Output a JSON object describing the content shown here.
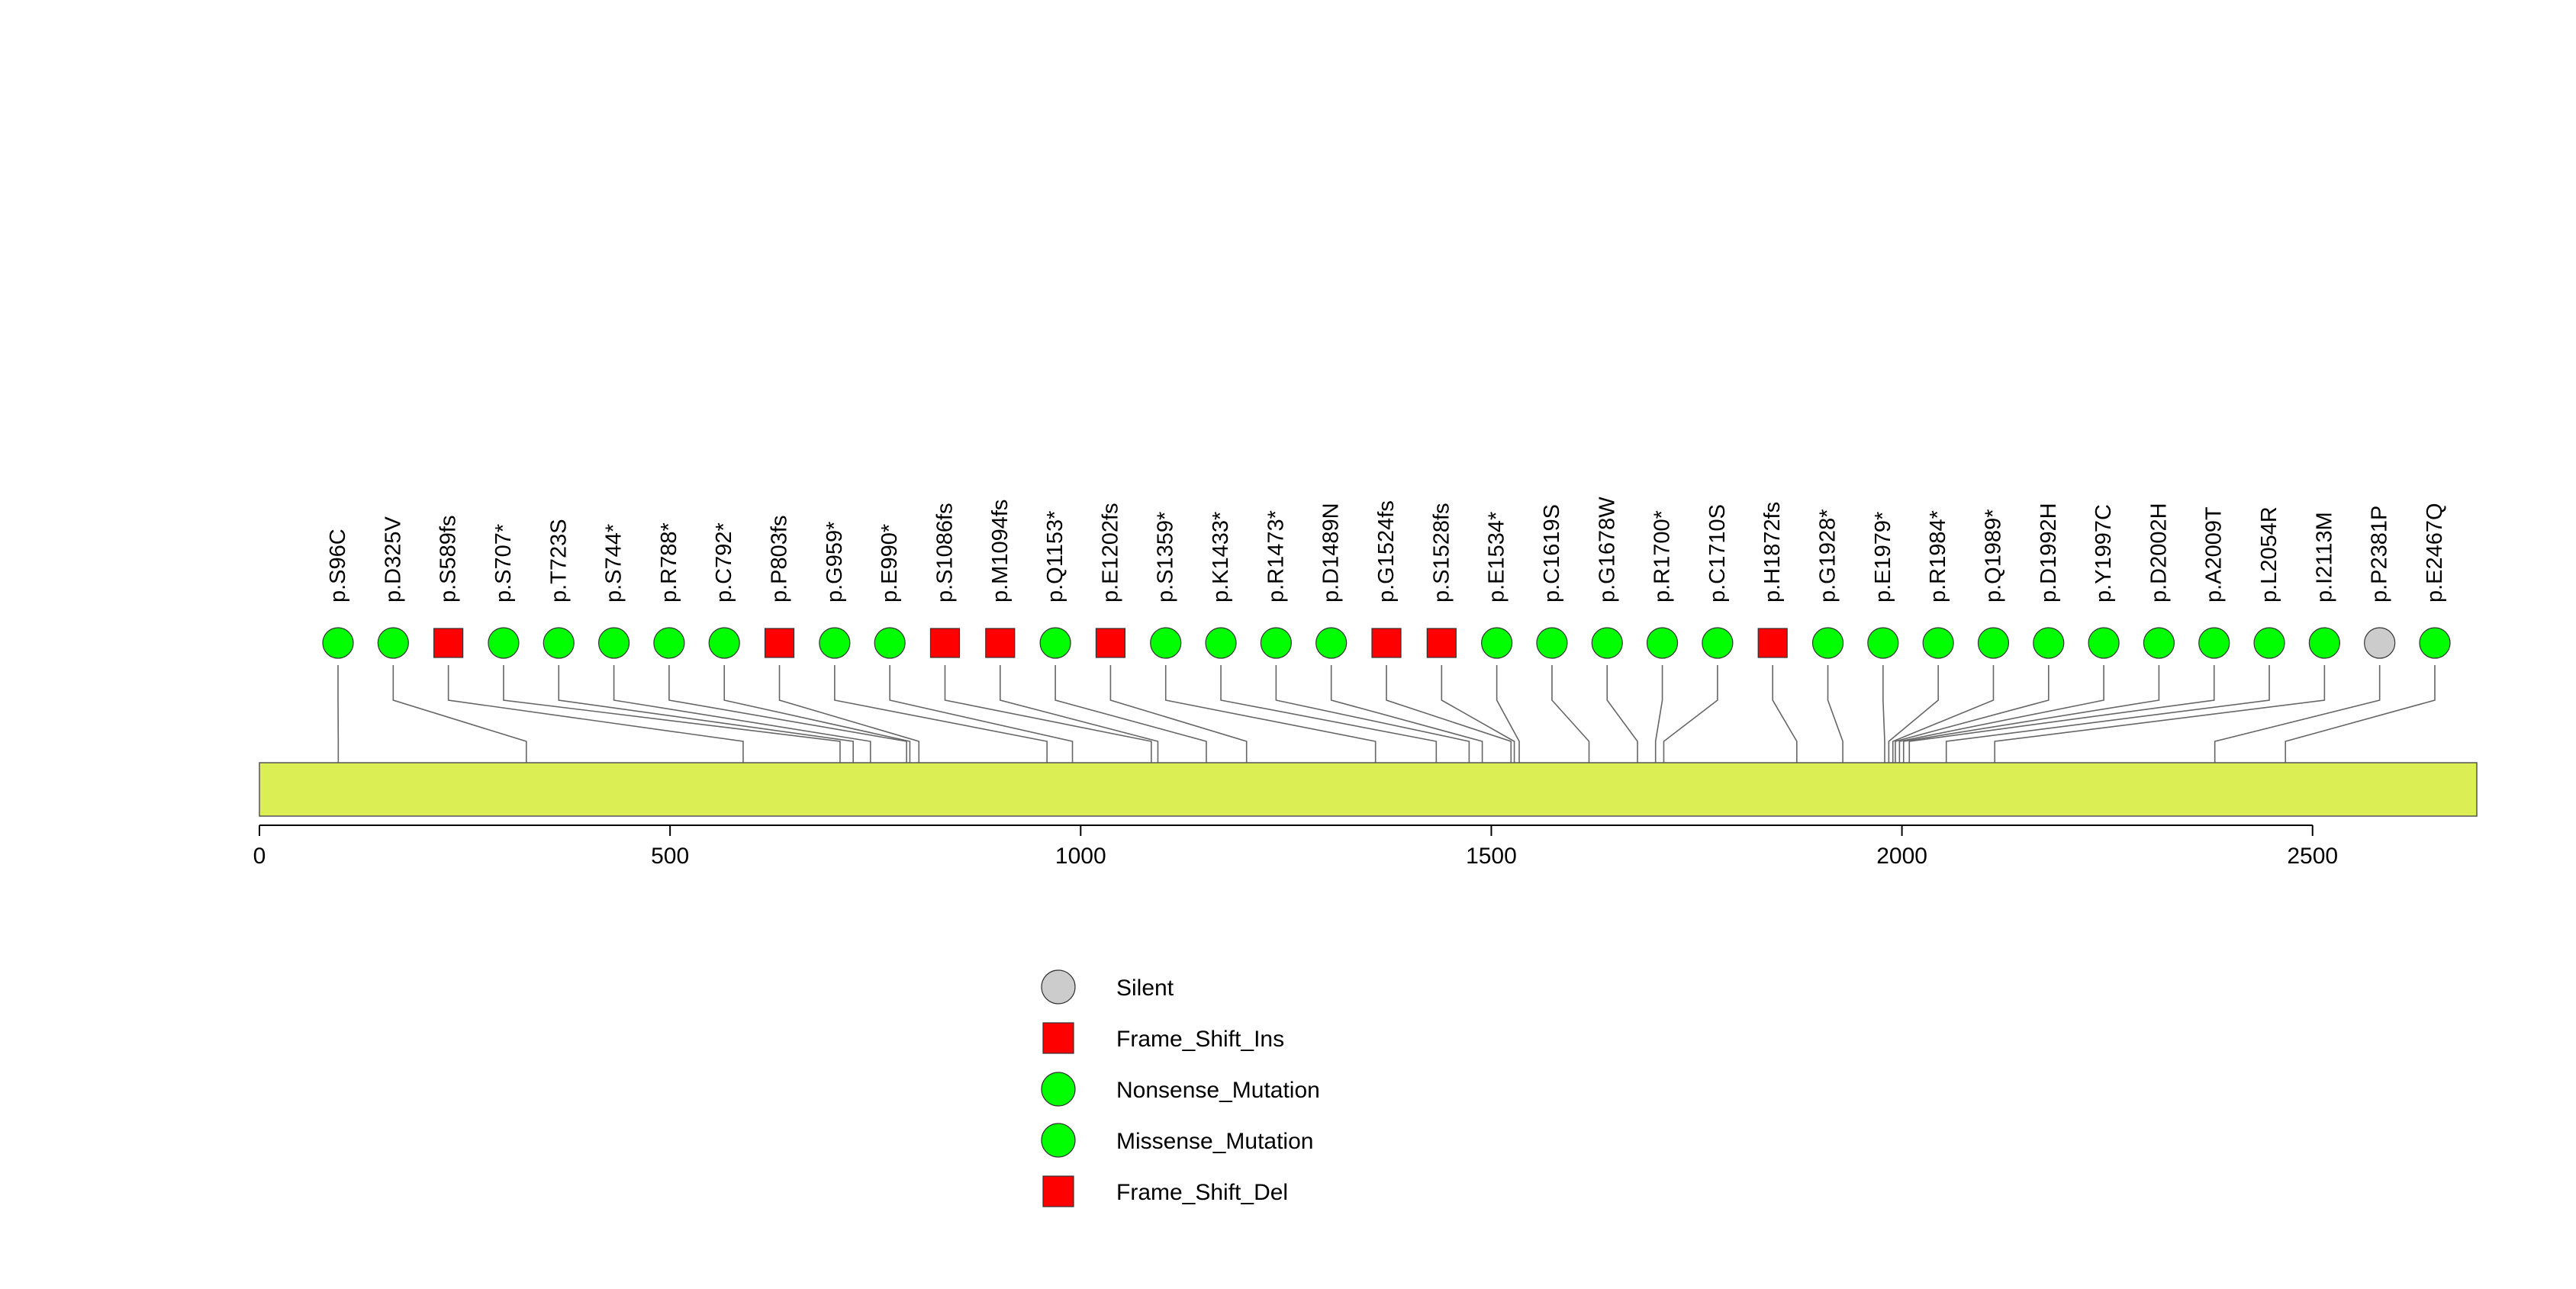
{
  "chart_data": {
    "type": "lollipop",
    "xlim": [
      0,
      2700
    ],
    "ticks": [
      0,
      500,
      1000,
      1500,
      2000,
      2500
    ],
    "protein_bar_color": "#dbee54",
    "mutations": [
      {
        "label": "p.S96C",
        "pos": 96,
        "type": "Missense_Mutation"
      },
      {
        "label": "p.D325V",
        "pos": 325,
        "type": "Missense_Mutation"
      },
      {
        "label": "p.S589fs",
        "pos": 589,
        "type": "Frame_Shift_Ins"
      },
      {
        "label": "p.S707*",
        "pos": 707,
        "type": "Nonsense_Mutation"
      },
      {
        "label": "p.T723S",
        "pos": 723,
        "type": "Missense_Mutation"
      },
      {
        "label": "p.S744*",
        "pos": 744,
        "type": "Nonsense_Mutation"
      },
      {
        "label": "p.R788*",
        "pos": 788,
        "type": "Nonsense_Mutation"
      },
      {
        "label": "p.C792*",
        "pos": 792,
        "type": "Nonsense_Mutation"
      },
      {
        "label": "p.P803fs",
        "pos": 803,
        "type": "Frame_Shift_Del"
      },
      {
        "label": "p.G959*",
        "pos": 959,
        "type": "Nonsense_Mutation"
      },
      {
        "label": "p.E990*",
        "pos": 990,
        "type": "Nonsense_Mutation"
      },
      {
        "label": "p.S1086fs",
        "pos": 1086,
        "type": "Frame_Shift_Del"
      },
      {
        "label": "p.M1094fs",
        "pos": 1094,
        "type": "Frame_Shift_Del"
      },
      {
        "label": "p.Q1153*",
        "pos": 1153,
        "type": "Nonsense_Mutation"
      },
      {
        "label": "p.E1202fs",
        "pos": 1202,
        "type": "Frame_Shift_Del"
      },
      {
        "label": "p.S1359*",
        "pos": 1359,
        "type": "Nonsense_Mutation"
      },
      {
        "label": "p.K1433*",
        "pos": 1433,
        "type": "Nonsense_Mutation"
      },
      {
        "label": "p.R1473*",
        "pos": 1473,
        "type": "Nonsense_Mutation"
      },
      {
        "label": "p.D1489N",
        "pos": 1489,
        "type": "Missense_Mutation"
      },
      {
        "label": "p.G1524fs",
        "pos": 1524,
        "type": "Frame_Shift_Del"
      },
      {
        "label": "p.S1528fs",
        "pos": 1528,
        "type": "Frame_Shift_Del"
      },
      {
        "label": "p.E1534*",
        "pos": 1534,
        "type": "Nonsense_Mutation"
      },
      {
        "label": "p.C1619S",
        "pos": 1619,
        "type": "Missense_Mutation"
      },
      {
        "label": "p.G1678W",
        "pos": 1678,
        "type": "Missense_Mutation"
      },
      {
        "label": "p.R1700*",
        "pos": 1700,
        "type": "Nonsense_Mutation"
      },
      {
        "label": "p.C1710S",
        "pos": 1710,
        "type": "Missense_Mutation"
      },
      {
        "label": "p.H1872fs",
        "pos": 1872,
        "type": "Frame_Shift_Del"
      },
      {
        "label": "p.G1928*",
        "pos": 1928,
        "type": "Nonsense_Mutation"
      },
      {
        "label": "p.E1979*",
        "pos": 1979,
        "type": "Nonsense_Mutation"
      },
      {
        "label": "p.R1984*",
        "pos": 1984,
        "type": "Nonsense_Mutation"
      },
      {
        "label": "p.Q1989*",
        "pos": 1989,
        "type": "Nonsense_Mutation"
      },
      {
        "label": "p.D1992H",
        "pos": 1992,
        "type": "Missense_Mutation"
      },
      {
        "label": "p.Y1997C",
        "pos": 1997,
        "type": "Missense_Mutation"
      },
      {
        "label": "p.D2002H",
        "pos": 2002,
        "type": "Missense_Mutation"
      },
      {
        "label": "p.A2009T",
        "pos": 2009,
        "type": "Missense_Mutation"
      },
      {
        "label": "p.L2054R",
        "pos": 2054,
        "type": "Missense_Mutation"
      },
      {
        "label": "p.I2113M",
        "pos": 2113,
        "type": "Missense_Mutation"
      },
      {
        "label": "p.P2381P",
        "pos": 2381,
        "type": "Silent"
      },
      {
        "label": "p.E2467Q",
        "pos": 2467,
        "type": "Missense_Mutation"
      }
    ],
    "legend": [
      {
        "label": "Silent",
        "shape": "circle",
        "color": "#cccccc"
      },
      {
        "label": "Frame_Shift_Ins",
        "shape": "square",
        "color": "#ff0000"
      },
      {
        "label": "Nonsense_Mutation",
        "shape": "circle",
        "color": "#00ff00"
      },
      {
        "label": "Missense_Mutation",
        "shape": "circle",
        "color": "#00ff00"
      },
      {
        "label": "Frame_Shift_Del",
        "shape": "square",
        "color": "#ff0000"
      }
    ],
    "type_styles": {
      "Silent": {
        "shape": "circle",
        "color": "#cccccc"
      },
      "Frame_Shift_Ins": {
        "shape": "square",
        "color": "#ff0000"
      },
      "Nonsense_Mutation": {
        "shape": "circle",
        "color": "#00ff00"
      },
      "Missense_Mutation": {
        "shape": "circle",
        "color": "#00ff00"
      },
      "Frame_Shift_Del": {
        "shape": "square",
        "color": "#ff0000"
      }
    }
  }
}
